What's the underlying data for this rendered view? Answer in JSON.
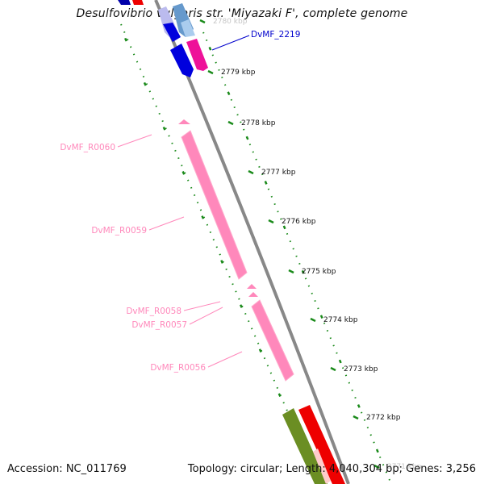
{
  "title": "Desulfovibrio vulgaris str. 'Miyazaki F', complete genome",
  "footer": {
    "accession": "Accession: NC_011769",
    "stats": "Topology: circular; Length: 4,040,304 bp; Genes: 3,256"
  },
  "ticks": [
    {
      "label": "2780 kbp",
      "faded": true
    },
    {
      "label": "2779 kbp"
    },
    {
      "label": "2778 kbp"
    },
    {
      "label": "2777 kbp"
    },
    {
      "label": "2776 kbp"
    },
    {
      "label": "2775 kbp"
    },
    {
      "label": "2774 kbp"
    },
    {
      "label": "2773 kbp"
    },
    {
      "label": "2772 kbp"
    },
    {
      "label": "2771 kbp",
      "faded": true
    }
  ],
  "features": [
    {
      "label": "DvMF_2219",
      "color": "#0000cc"
    },
    {
      "label": "DvMF_R0060",
      "color": "#ff88bb"
    },
    {
      "label": "DvMF_R0059",
      "color": "#ff88bb"
    },
    {
      "label": "DvMF_R0058",
      "color": "#ff88bb"
    },
    {
      "label": "DvMF_R0057",
      "color": "#ff88bb"
    },
    {
      "label": "DvMF_R0056",
      "color": "#ff88bb"
    }
  ],
  "colors": {
    "backbone": "#888888",
    "gc_dots": "#1a8a1a",
    "cds": "#0000dd",
    "cds_light": "#7799cc",
    "trna": "#ff77aa",
    "rrna": "#ff77aa",
    "misc_red": "#ee0000",
    "olive": "#6b8e23"
  }
}
